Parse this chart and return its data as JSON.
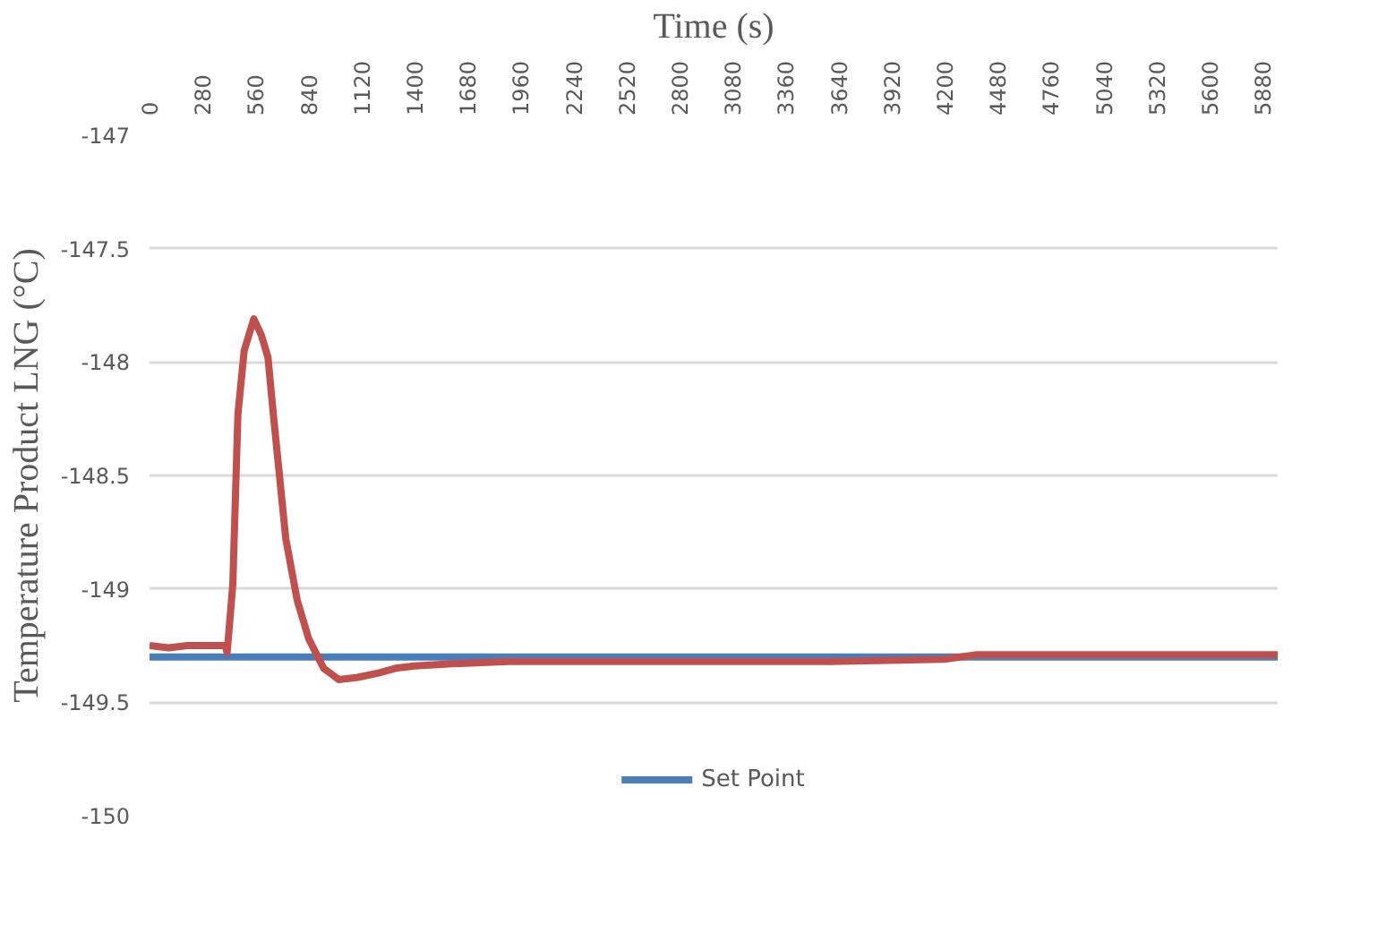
{
  "chart_data": {
    "type": "line",
    "xlabel": "Time (s)",
    "ylabel": "Temperature Product LNG (°C)",
    "xlim": [
      0,
      5960
    ],
    "xticks": [
      0,
      280,
      560,
      840,
      1120,
      1400,
      1680,
      1960,
      2240,
      2520,
      2800,
      3080,
      3360,
      3640,
      3920,
      4200,
      4480,
      4760,
      5040,
      5320,
      5600,
      5880
    ],
    "ylim": [
      -150,
      -147
    ],
    "yticks": [
      -150,
      -149.5,
      -149,
      -148.5,
      -148,
      -147.5,
      -147
    ],
    "grid": "y",
    "legend": "bottom",
    "series": [
      {
        "name": "Set Point",
        "color": "#4a7ebb",
        "x": [
          0,
          5960
        ],
        "values": [
          -149.3,
          -149.3
        ]
      },
      {
        "color": "#c0504d",
        "x": [
          0,
          100,
          200,
          300,
          400,
          410,
          440,
          467,
          500,
          551,
          590,
          626,
          654,
          720,
          780,
          841,
          920,
          1000,
          1100,
          1215,
          1300,
          1400,
          1600,
          1900,
          2400,
          3000,
          3600,
          4200,
          4370,
          4500,
          5000,
          5500,
          5960
        ],
        "values": [
          -149.25,
          -149.26,
          -149.25,
          -149.25,
          -149.25,
          -149.28,
          -148.98,
          -148.23,
          -147.95,
          -147.81,
          -147.88,
          -147.98,
          -148.23,
          -148.78,
          -149.05,
          -149.22,
          -149.35,
          -149.4,
          -149.39,
          -149.37,
          -149.35,
          -149.34,
          -149.33,
          -149.32,
          -149.32,
          -149.32,
          -149.32,
          -149.31,
          -149.29,
          -149.29,
          -149.29,
          -149.29,
          -149.29
        ]
      }
    ]
  }
}
